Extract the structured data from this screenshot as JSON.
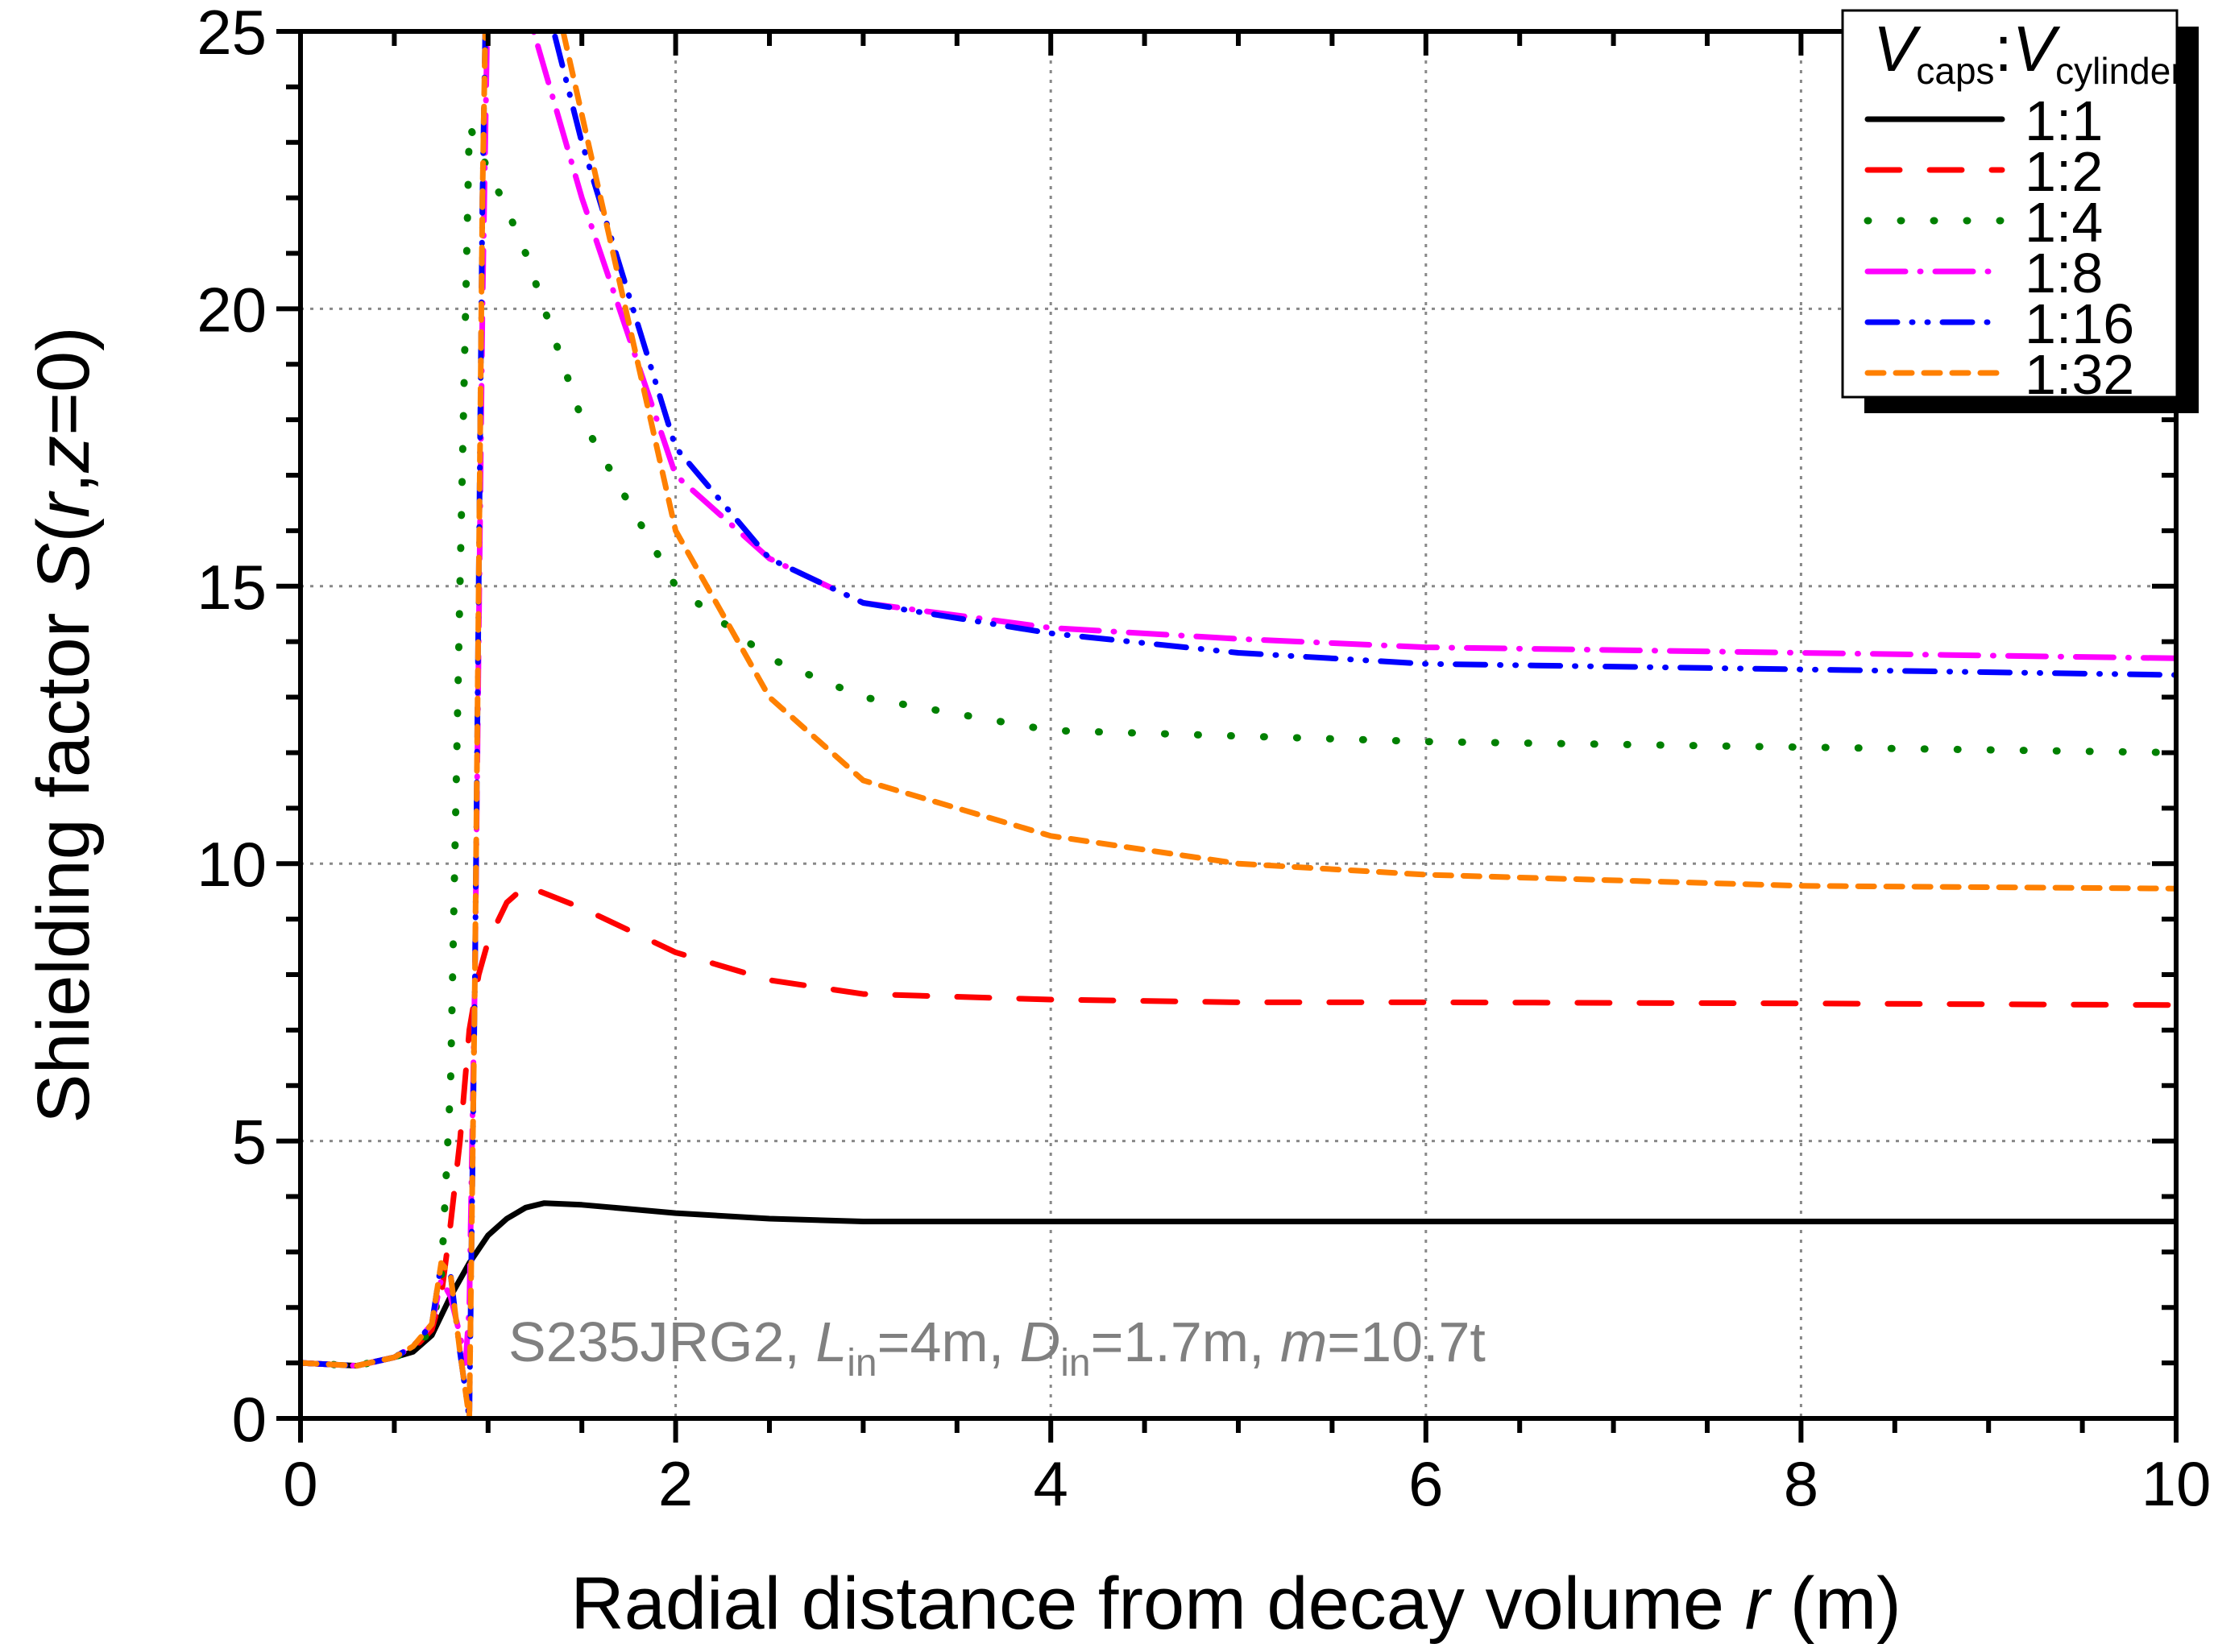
{
  "chart_data": {
    "type": "line",
    "xlabel": "Radial distance from decay volume r (m)",
    "xlabel_parts": {
      "pre": "Radial distance from decay volume ",
      "var": "r",
      "post": " (m)"
    },
    "ylabel": "Shielding factor S(r,z=0)",
    "ylabel_parts": {
      "pre": "Shielding factor ",
      "S": "S",
      "open": "(",
      "r": "r",
      "comma": ",",
      "z": "z",
      "post": "=0)"
    },
    "xlim": [
      0,
      10
    ],
    "ylim": [
      0,
      25
    ],
    "xticks": [
      0,
      2,
      4,
      6,
      8,
      10
    ],
    "yticks": [
      0,
      5,
      10,
      15,
      20,
      25
    ],
    "x_minor_step": 0.5,
    "y_minor_step": 1,
    "grid": true,
    "legend": {
      "placement": "top-right",
      "title": {
        "v1": "V",
        "sub1": "caps",
        "sep": ":",
        "v2": "V",
        "sub2": "cylinder"
      }
    },
    "annotation": {
      "material": "S235JRG2, ",
      "L": "L",
      "L_sub": "in",
      "L_val": "=4m, ",
      "D": "D",
      "D_sub": "in",
      "D_val": "=1.7m, ",
      "m": "m",
      "m_val": "=10.7t"
    },
    "series": [
      {
        "name": "1:1",
        "color": "#000000",
        "style": "solid",
        "x": [
          0,
          0.3,
          0.5,
          0.6,
          0.7,
          0.8,
          0.9,
          1.0,
          1.1,
          1.2,
          1.3,
          1.5,
          2,
          2.5,
          3,
          4,
          5,
          6,
          8,
          10
        ],
        "y": [
          1,
          0.95,
          1.1,
          1.2,
          1.5,
          2.2,
          2.8,
          3.3,
          3.6,
          3.8,
          3.88,
          3.85,
          3.7,
          3.6,
          3.55,
          3.55,
          3.55,
          3.55,
          3.55,
          3.55
        ]
      },
      {
        "name": "1:2",
        "color": "#ff0000",
        "style": "dash",
        "x": [
          0,
          0.3,
          0.5,
          0.6,
          0.7,
          0.75,
          0.8,
          0.85,
          0.9,
          0.95,
          1.0,
          1.1,
          1.2,
          1.5,
          2,
          2.5,
          3,
          4,
          5,
          6,
          8,
          10
        ],
        "y": [
          1,
          0.95,
          1.1,
          1.25,
          1.6,
          2.2,
          3.5,
          5,
          7,
          8.0,
          8.6,
          9.3,
          9.6,
          9.2,
          8.4,
          7.9,
          7.65,
          7.55,
          7.5,
          7.5,
          7.48,
          7.45
        ]
      },
      {
        "name": "1:4",
        "color": "#008000",
        "style": "dot",
        "x": [
          0,
          0.3,
          0.5,
          0.6,
          0.7,
          0.75,
          0.8,
          0.85,
          0.9,
          1.0,
          1.1,
          1.2,
          1.5,
          2,
          2.5,
          3,
          4,
          5,
          6,
          8,
          10
        ],
        "y": [
          1,
          0.95,
          1.1,
          1.25,
          1.6,
          2.5,
          6,
          15,
          23.3,
          22.5,
          21.8,
          21,
          18,
          15,
          13.7,
          13,
          12.4,
          12.3,
          12.2,
          12.1,
          12.0
        ]
      },
      {
        "name": "1:8",
        "color": "#ff00ff",
        "style": "dashdot",
        "x": [
          0,
          0.3,
          0.5,
          0.6,
          0.7,
          0.75,
          0.8,
          0.85,
          0.88,
          0.9,
          0.93,
          0.97,
          1.0,
          1.1,
          1.2,
          1.5,
          2,
          2.5,
          3,
          4,
          5,
          6,
          8,
          10
        ],
        "y": [
          1,
          0.95,
          1.1,
          1.3,
          1.7,
          2.5,
          2.2,
          1.5,
          1.0,
          2,
          8,
          20,
          26,
          28,
          25.5,
          22,
          17,
          15.5,
          14.7,
          14.25,
          14.05,
          13.9,
          13.8,
          13.7
        ]
      },
      {
        "name": "1:16",
        "color": "#0000ff",
        "style": "dashdotdot",
        "x": [
          0,
          0.3,
          0.5,
          0.6,
          0.7,
          0.75,
          0.8,
          0.85,
          0.9,
          0.93,
          0.97,
          1.0,
          1.2,
          1.35,
          1.5,
          2,
          2.5,
          3,
          4,
          5,
          6,
          8,
          10
        ],
        "y": [
          1,
          0.95,
          1.1,
          1.3,
          1.7,
          2.8,
          2.6,
          1.2,
          0,
          8,
          22,
          28,
          30,
          25,
          23,
          17.5,
          15.5,
          14.7,
          14.15,
          13.8,
          13.6,
          13.5,
          13.4
        ]
      },
      {
        "name": "1:32",
        "color": "#ff8000",
        "style": "shortdash",
        "x": [
          0,
          0.3,
          0.5,
          0.6,
          0.7,
          0.75,
          0.8,
          0.85,
          0.9,
          0.93,
          0.97,
          1.0,
          1.2,
          1.4,
          1.5,
          2,
          2.5,
          3,
          4,
          5,
          6,
          8,
          10
        ],
        "y": [
          1,
          0.95,
          1.1,
          1.3,
          1.7,
          2.8,
          2.6,
          1.2,
          0,
          8,
          22,
          28,
          32,
          25,
          23.5,
          16,
          13,
          11.5,
          10.5,
          10.0,
          9.8,
          9.6,
          9.55
        ]
      }
    ]
  }
}
